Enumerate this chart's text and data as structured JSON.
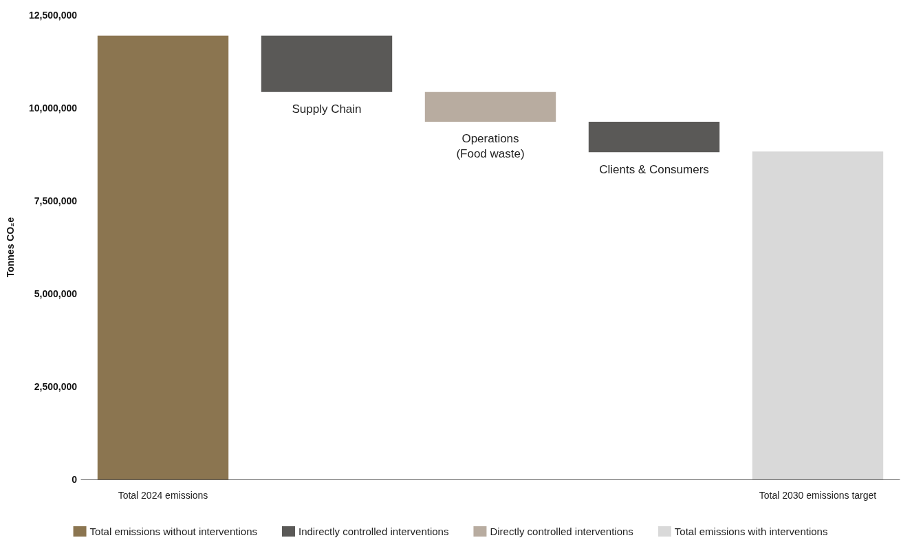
{
  "chart_data": {
    "type": "bar",
    "ylabel": "Tonnes CO₂e",
    "categories": [
      "Total 2024 emissions",
      "Supply Chain",
      "Operations\n(Food waste)",
      "Clients & Consumers",
      "Total 2030 emissions target"
    ],
    "series": [
      {
        "name": "Total emissions without interventions",
        "color": "#8b7550",
        "values": [
          11950000,
          null,
          null,
          null,
          null
        ],
        "base": [
          0,
          null,
          null,
          null,
          null
        ]
      },
      {
        "name": "Indirectly controlled interventions",
        "color": "#5a5957",
        "values": [
          null,
          1520000,
          null,
          820000,
          null
        ],
        "base": [
          null,
          10430000,
          null,
          8810000,
          null
        ]
      },
      {
        "name": "Directly controlled interventions",
        "color": "#b8aca0",
        "values": [
          null,
          null,
          800000,
          null,
          null
        ],
        "base": [
          null,
          null,
          9630000,
          null,
          null
        ]
      },
      {
        "name": "Total emissions with interventions",
        "color": "#d9d9d9",
        "values": [
          null,
          null,
          null,
          null,
          8830000
        ],
        "base": [
          null,
          null,
          null,
          null,
          0
        ]
      }
    ],
    "ylim": [
      0,
      12500000
    ],
    "yticks": [
      0,
      {
        "value": 2500000,
        "label": "2,500,000"
      },
      {
        "value": 5000000,
        "label": "5,000,000"
      },
      {
        "value": 7500000,
        "label": "7,500,000"
      },
      {
        "value": 10000000,
        "label": "10,000,000"
      },
      {
        "value": 12500000,
        "label": "12,500,000"
      }
    ],
    "grid": false,
    "legend": "bottom"
  }
}
